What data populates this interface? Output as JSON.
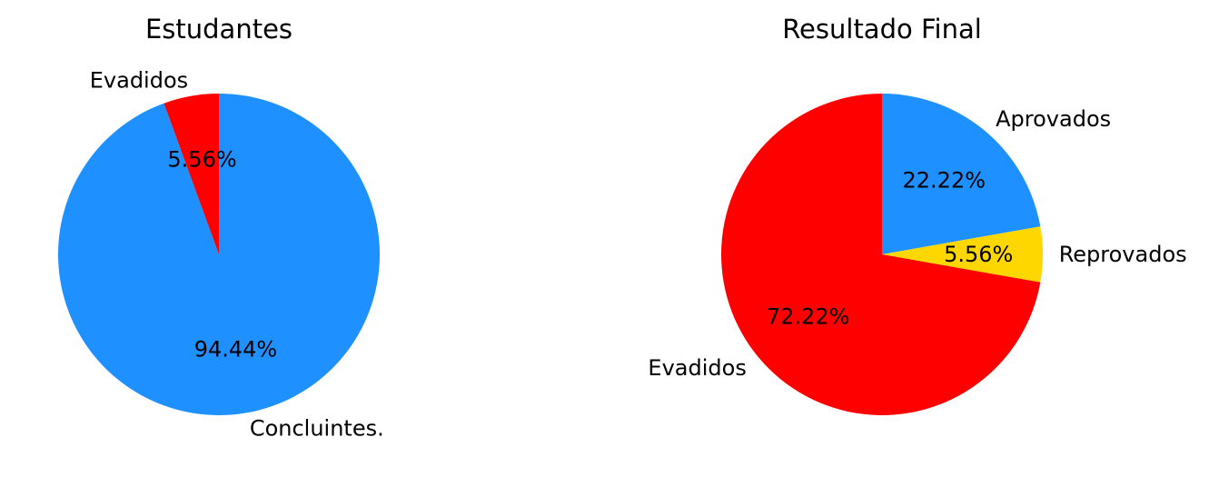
{
  "chart_data": [
    {
      "type": "pie",
      "title": "Estudantes",
      "start_angle_deg": 90,
      "direction": "clockwise",
      "slices": [
        {
          "label": "Concluintes.",
          "value": 94.44,
          "pct_label": "94.44%",
          "color": "#1E90FF"
        },
        {
          "label": "Evadidos",
          "value": 5.56,
          "pct_label": "5.56%",
          "color": "#FF0000"
        }
      ]
    },
    {
      "type": "pie",
      "title": "Resultado Final",
      "start_angle_deg": 90,
      "direction": "clockwise",
      "slices": [
        {
          "label": "Aprovados",
          "value": 22.22,
          "pct_label": "22.22%",
          "color": "#1E90FF"
        },
        {
          "label": "Reprovados",
          "value": 5.56,
          "pct_label": "5.56%",
          "color": "#FFD700"
        },
        {
          "label": "Evadidos",
          "value": 72.22,
          "pct_label": "72.22%",
          "color": "#FF0000"
        }
      ]
    }
  ]
}
